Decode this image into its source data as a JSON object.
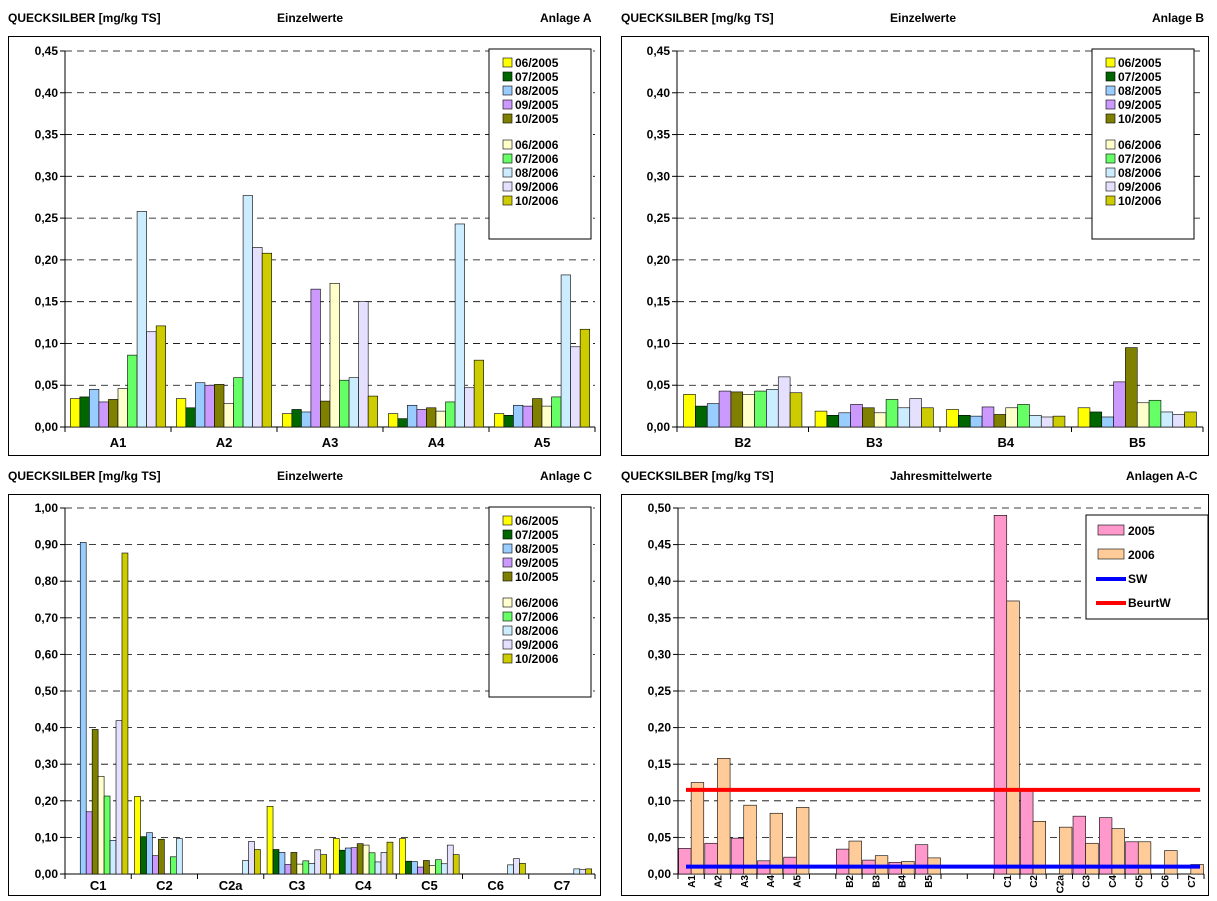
{
  "charts": [
    {
      "id": "A",
      "header": {
        "left": "QUECKSILBER [mg/kg TS]",
        "center": "Einzelwerte",
        "right": "Anlage A"
      },
      "chart_data": {
        "type": "bar",
        "categories": [
          "A1",
          "A2",
          "A3",
          "A4",
          "A5"
        ],
        "ylim": [
          0,
          0.45
        ],
        "ytick_step": 0.05,
        "ytick_labels": [
          "0,00",
          "0,05",
          "0,10",
          "0,15",
          "0,20",
          "0,25",
          "0,30",
          "0,35",
          "0,40",
          "0,45"
        ],
        "grid": true,
        "legend_position": "top-right",
        "series": [
          {
            "name": "06/2005",
            "color": "#ffff00",
            "values": [
              0.034,
              0.034,
              0.016,
              0.016,
              0.016
            ]
          },
          {
            "name": "07/2005",
            "color": "#006600",
            "values": [
              0.036,
              0.023,
              0.021,
              0.01,
              0.014
            ]
          },
          {
            "name": "08/2005",
            "color": "#99ccff",
            "values": [
              0.045,
              0.053,
              0.018,
              0.026,
              0.026
            ]
          },
          {
            "name": "09/2005",
            "color": "#cc99ff",
            "values": [
              0.03,
              0.05,
              0.165,
              0.021,
              0.025
            ]
          },
          {
            "name": "10/2005",
            "color": "#808000",
            "values": [
              0.033,
              0.051,
              0.031,
              0.023,
              0.034
            ]
          },
          {
            "name": "06/2006",
            "color": "#ffffcc",
            "values": [
              0.046,
              0.028,
              0.172,
              0.019,
              0.025
            ]
          },
          {
            "name": "07/2006",
            "color": "#66ff66",
            "values": [
              0.086,
              0.059,
              0.056,
              0.03,
              0.036
            ]
          },
          {
            "name": "08/2006",
            "color": "#ccecff",
            "values": [
              0.258,
              0.277,
              0.059,
              0.243,
              0.182
            ]
          },
          {
            "name": "09/2006",
            "color": "#e6e0ff",
            "values": [
              0.114,
              0.215,
              0.15,
              0.047,
              0.096
            ]
          },
          {
            "name": "10/2006",
            "color": "#cccc00",
            "values": [
              0.121,
              0.208,
              0.037,
              0.08,
              0.117
            ]
          }
        ]
      }
    },
    {
      "id": "B",
      "header": {
        "left": "QUECKSILBER [mg/kg TS]",
        "center": "Einzelwerte",
        "right": "Anlage B"
      },
      "chart_data": {
        "type": "bar",
        "categories": [
          "B2",
          "B3",
          "B4",
          "B5"
        ],
        "ylim": [
          0,
          0.45
        ],
        "ytick_step": 0.05,
        "ytick_labels": [
          "0,00",
          "0,05",
          "0,10",
          "0,15",
          "0,20",
          "0,25",
          "0,30",
          "0,35",
          "0,40",
          "0,45"
        ],
        "grid": true,
        "legend_position": "top-right",
        "series": [
          {
            "name": "06/2005",
            "color": "#ffff00",
            "values": [
              0.039,
              0.019,
              0.021,
              0.023
            ]
          },
          {
            "name": "07/2005",
            "color": "#006600",
            "values": [
              0.025,
              0.014,
              0.014,
              0.018
            ]
          },
          {
            "name": "08/2005",
            "color": "#99ccff",
            "values": [
              0.028,
              0.017,
              0.013,
              0.012
            ]
          },
          {
            "name": "09/2005",
            "color": "#cc99ff",
            "values": [
              0.043,
              0.027,
              0.024,
              0.054
            ]
          },
          {
            "name": "10/2005",
            "color": "#808000",
            "values": [
              0.042,
              0.023,
              0.015,
              0.095
            ]
          },
          {
            "name": "06/2006",
            "color": "#ffffcc",
            "values": [
              0.039,
              0.017,
              0.023,
              0.029
            ]
          },
          {
            "name": "07/2006",
            "color": "#66ff66",
            "values": [
              0.043,
              0.033,
              0.027,
              0.032
            ]
          },
          {
            "name": "08/2006",
            "color": "#ccecff",
            "values": [
              0.045,
              0.023,
              0.014,
              0.018
            ]
          },
          {
            "name": "09/2006",
            "color": "#e6e0ff",
            "values": [
              0.06,
              0.034,
              0.012,
              0.015
            ]
          },
          {
            "name": "10/2006",
            "color": "#cccc00",
            "values": [
              0.041,
              0.023,
              0.013,
              0.018
            ]
          }
        ]
      }
    },
    {
      "id": "C",
      "header": {
        "left": "QUECKSILBER [mg/kg TS]",
        "center": "Einzelwerte",
        "right": "Anlage C"
      },
      "chart_data": {
        "type": "bar",
        "categories": [
          "C1",
          "C2",
          "C2a",
          "C3",
          "C4",
          "C5",
          "C6",
          "C7"
        ],
        "ylim": [
          0,
          1.0
        ],
        "ytick_step": 0.1,
        "ytick_labels": [
          "0,00",
          "0,10",
          "0,20",
          "0,30",
          "0,40",
          "0,50",
          "0,60",
          "0,70",
          "0,80",
          "0,90",
          "1,00"
        ],
        "grid": true,
        "legend_position": "top-right",
        "series": [
          {
            "name": "06/2005",
            "color": "#ffff00",
            "values": [
              0.0,
              0.212,
              0,
              0.185,
              0.097,
              0.097,
              0,
              0
            ]
          },
          {
            "name": "07/2005",
            "color": "#006600",
            "values": [
              0.0,
              0.102,
              0,
              0.067,
              0.065,
              0.035,
              0,
              0
            ]
          },
          {
            "name": "08/2005",
            "color": "#99ccff",
            "values": [
              0.906,
              0.113,
              0,
              0.059,
              0.071,
              0.034,
              0,
              0
            ]
          },
          {
            "name": "09/2005",
            "color": "#cc99ff",
            "values": [
              0.17,
              0.05,
              0,
              0.026,
              0.072,
              0.019,
              0,
              0
            ]
          },
          {
            "name": "10/2005",
            "color": "#808000",
            "values": [
              0.395,
              0.095,
              0,
              0.059,
              0.083,
              0.037,
              0,
              0
            ]
          },
          {
            "name": "06/2006",
            "color": "#ffffcc",
            "values": [
              0.267,
              0.0,
              0,
              0.027,
              0.079,
              0.023,
              0,
              0
            ]
          },
          {
            "name": "07/2006",
            "color": "#66ff66",
            "values": [
              0.213,
              0.047,
              0,
              0.036,
              0.058,
              0.039,
              0,
              0
            ]
          },
          {
            "name": "08/2006",
            "color": "#ccecff",
            "values": [
              0.092,
              0.097,
              0.037,
              0.029,
              0.033,
              0.028,
              0.025,
              0.014
            ]
          },
          {
            "name": "09/2006",
            "color": "#e6e0ff",
            "values": [
              0.419,
              0.0,
              0.089,
              0.066,
              0.059,
              0.079,
              0.042,
              0.012
            ]
          },
          {
            "name": "10/2006",
            "color": "#cccc00",
            "values": [
              0.877,
              0.0,
              0.067,
              0.053,
              0.087,
              0.053,
              0.029,
              0.014
            ]
          }
        ]
      }
    },
    {
      "id": "ABC",
      "header": {
        "left": "QUECKSILBER [mg/kg TS]",
        "center": "Jahresmittelwerte",
        "right": "Anlagen A-C"
      },
      "chart_data": {
        "type": "bar",
        "categories": [
          "A1",
          "A2",
          "A3",
          "A4",
          "A5",
          "",
          "B2",
          "B3",
          "B4",
          "B5",
          "",
          "",
          "C1",
          "C2",
          "C2a",
          "C3",
          "C4",
          "C5",
          "C6",
          "C7"
        ],
        "ylim": [
          0,
          0.5
        ],
        "ytick_step": 0.05,
        "ytick_labels": [
          "0,00",
          "0,05",
          "0,10",
          "0,15",
          "0,20",
          "0,25",
          "0,30",
          "0,35",
          "0,40",
          "0,45",
          "0,50"
        ],
        "grid": true,
        "legend_position": "top-right",
        "series": [
          {
            "name": "2005",
            "color": "#ff99cc",
            "values": [
              0.035,
              0.042,
              0.049,
              0.018,
              0.023,
              null,
              0.034,
              0.019,
              0.016,
              0.04,
              null,
              null,
              0.49,
              0.116,
              0,
              0.079,
              0.077,
              0.044,
              0,
              0
            ]
          },
          {
            "name": "2006",
            "color": "#ffcc99",
            "values": [
              0.125,
              0.158,
              0.094,
              0.083,
              0.091,
              null,
              0.045,
              0.025,
              0.017,
              0.022,
              null,
              null,
              0.373,
              0.072,
              0.064,
              0.042,
              0.062,
              0.044,
              0.032,
              0.013
            ]
          }
        ],
        "lines": [
          {
            "name": "SW",
            "color": "#0000ff",
            "value": 0.01
          },
          {
            "name": "BeurtW",
            "color": "#ff0000",
            "value": 0.115
          }
        ]
      }
    }
  ]
}
